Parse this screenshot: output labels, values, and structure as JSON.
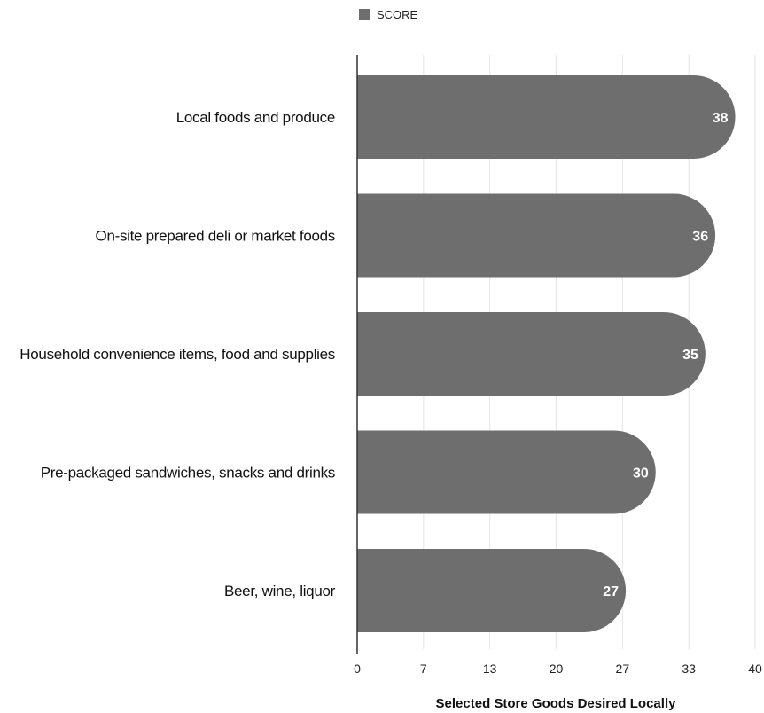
{
  "chart_data": {
    "type": "bar",
    "orientation": "horizontal",
    "categories": [
      "Local foods and produce",
      "On-site prepared deli or market foods",
      "Household convenience items, food and supplies",
      "Pre-packaged sandwiches, snacks and drinks",
      "Beer, wine, liquor"
    ],
    "series": [
      {
        "name": "SCORE",
        "values": [
          38,
          36,
          35,
          30,
          27
        ]
      }
    ],
    "xticks": [
      "0",
      "7",
      "13",
      "20",
      "27",
      "33",
      "40"
    ],
    "xlim": [
      0,
      40
    ],
    "xlabel": "Selected Store Goods Desired Locally",
    "ylabel": "",
    "title": "",
    "grid": true,
    "legend_position": "top",
    "bar_color": "#6e6e6e",
    "grid_color": "#e6e6e6",
    "axis_color": "#333333"
  }
}
